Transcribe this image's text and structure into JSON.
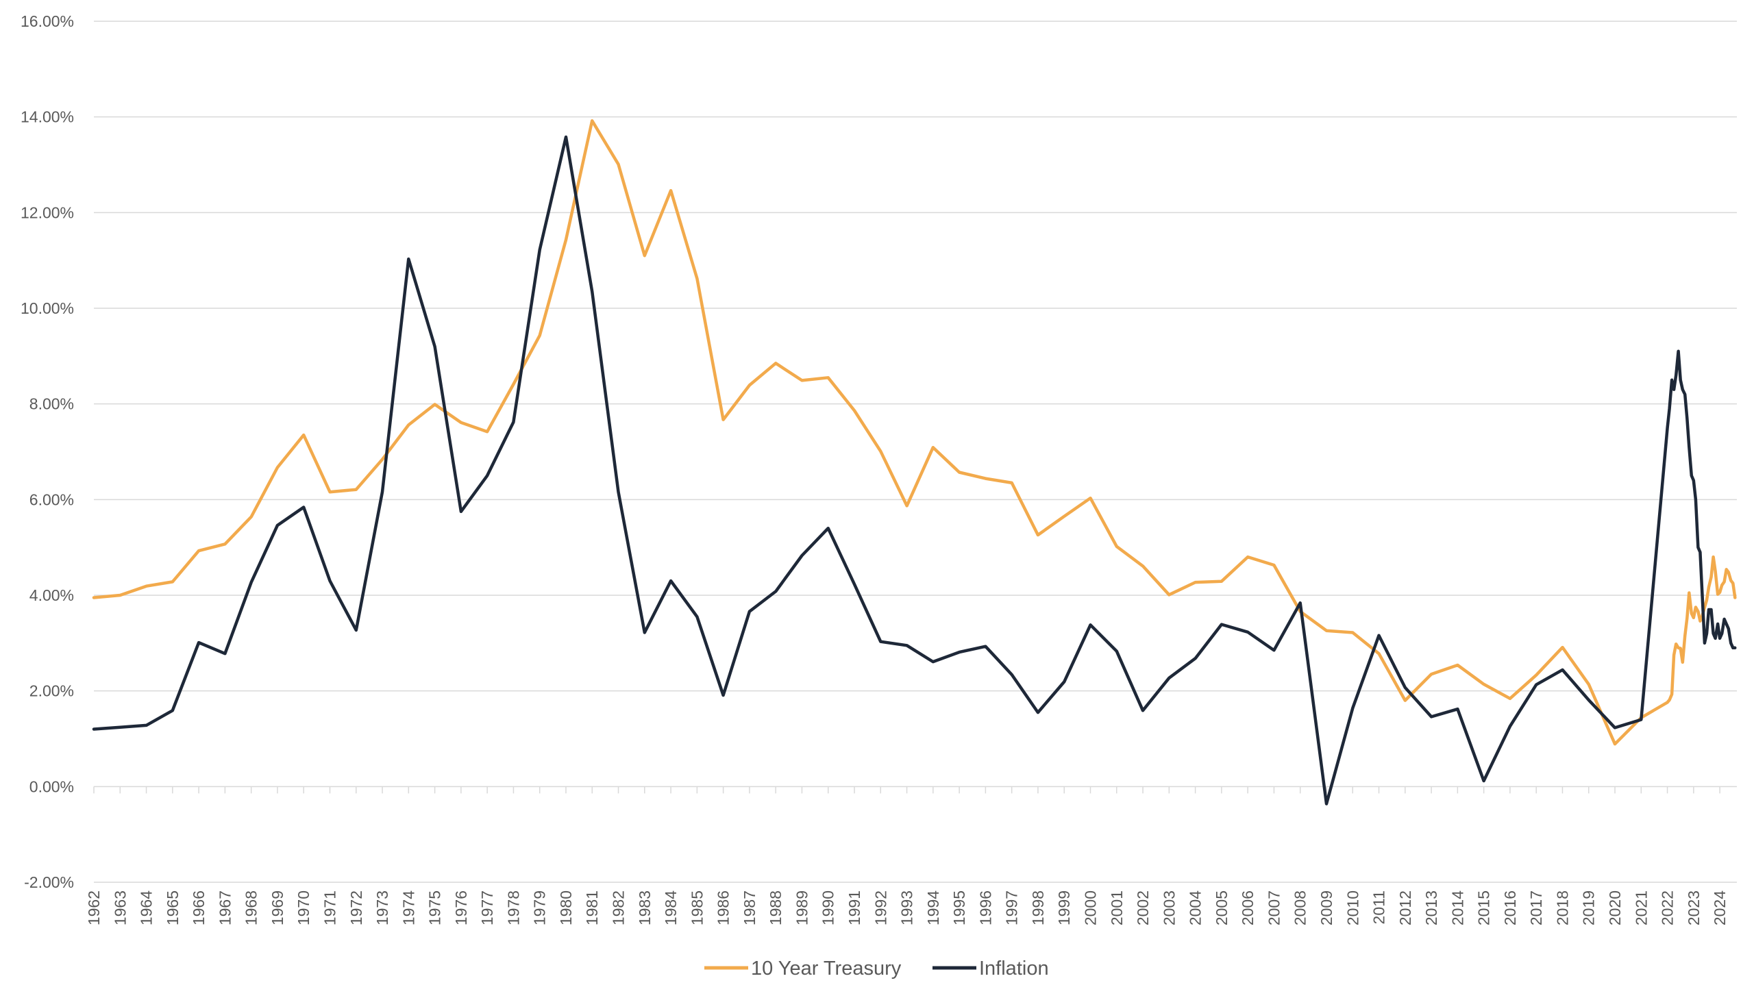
{
  "chart_data": {
    "type": "line",
    "title": "",
    "xlabel": "",
    "ylabel": "",
    "ylim": [
      -2,
      16
    ],
    "y_ticks": [
      "16.00%",
      "14.00%",
      "12.00%",
      "10.00%",
      "8.00%",
      "6.00%",
      "4.00%",
      "2.00%",
      "0.00%",
      "-2.00%"
    ],
    "y_tick_values": [
      16,
      14,
      12,
      10,
      8,
      6,
      4,
      2,
      0,
      -2
    ],
    "x_range": [
      1962,
      2024.65
    ],
    "x_ticks": [
      "1962",
      "1963",
      "1964",
      "1965",
      "1966",
      "1967",
      "1968",
      "1969",
      "1970",
      "1971",
      "1972",
      "1973",
      "1974",
      "1975",
      "1976",
      "1977",
      "1978",
      "1979",
      "1980",
      "1981",
      "1982",
      "1983",
      "1984",
      "1985",
      "1986",
      "1987",
      "1988",
      "1989",
      "1990",
      "1991",
      "1992",
      "1993",
      "1994",
      "1995",
      "1996",
      "1997",
      "1998",
      "1999",
      "2000",
      "2001",
      "2002",
      "2003",
      "2004",
      "2005",
      "2006",
      "2007",
      "2008",
      "2009",
      "2010",
      "2011",
      "2012",
      "2013",
      "2014",
      "2015",
      "2016",
      "2017",
      "2018",
      "2019",
      "2020",
      "2021",
      "2022",
      "2023",
      "2024"
    ],
    "grid": true,
    "legend": "bottom",
    "series": [
      {
        "name": "10 Year Treasury",
        "color": "#F2AA4C",
        "x": [
          1962,
          1963,
          1964,
          1965,
          1966,
          1967,
          1968,
          1969,
          1970,
          1971,
          1972,
          1973,
          1974,
          1975,
          1976,
          1977,
          1978,
          1979,
          1980,
          1981,
          1982,
          1983,
          1984,
          1985,
          1986,
          1987,
          1988,
          1989,
          1990,
          1991,
          1992,
          1993,
          1994,
          1995,
          1996,
          1997,
          1998,
          1999,
          2000,
          2001,
          2002,
          2003,
          2004,
          2005,
          2006,
          2007,
          2008,
          2009,
          2010,
          2011,
          2012,
          2013,
          2014,
          2015,
          2016,
          2017,
          2018,
          2019,
          2020,
          2021,
          2022.0,
          2022.08,
          2022.17,
          2022.25,
          2022.33,
          2022.42,
          2022.5,
          2022.58,
          2022.67,
          2022.75,
          2022.83,
          2022.92,
          2023.0,
          2023.08,
          2023.17,
          2023.25,
          2023.33,
          2023.42,
          2023.5,
          2023.58,
          2023.67,
          2023.75,
          2023.83,
          2023.92,
          2024.0,
          2024.08,
          2024.17,
          2024.25,
          2024.33,
          2024.42,
          2024.5,
          2024.58
        ],
        "y": [
          3.95,
          4.0,
          4.19,
          4.28,
          4.93,
          5.07,
          5.64,
          6.67,
          7.35,
          6.16,
          6.21,
          6.84,
          7.56,
          7.99,
          7.61,
          7.42,
          8.41,
          9.43,
          11.43,
          13.92,
          13.01,
          11.1,
          12.46,
          10.62,
          7.67,
          8.39,
          8.85,
          8.49,
          8.55,
          7.86,
          7.01,
          5.87,
          7.09,
          6.57,
          6.44,
          6.35,
          5.26,
          5.65,
          6.03,
          5.02,
          4.61,
          4.01,
          4.27,
          4.29,
          4.8,
          4.63,
          3.66,
          3.26,
          3.22,
          2.78,
          1.8,
          2.35,
          2.54,
          2.14,
          1.84,
          2.33,
          2.91,
          2.14,
          0.89,
          1.44,
          1.76,
          1.81,
          1.93,
          2.75,
          2.98,
          2.9,
          2.89,
          2.6,
          3.15,
          3.52,
          4.05,
          3.62,
          3.53,
          3.75,
          3.66,
          3.46,
          3.57,
          3.75,
          3.9,
          4.17,
          4.38,
          4.8,
          4.5,
          4.02,
          4.06,
          4.21,
          4.28,
          4.54,
          4.48,
          4.31,
          4.25,
          3.95
        ]
      },
      {
        "name": "Inflation",
        "color": "#1E2838",
        "x": [
          1962,
          1963,
          1964,
          1965,
          1966,
          1967,
          1968,
          1969,
          1970,
          1971,
          1972,
          1973,
          1974,
          1975,
          1976,
          1977,
          1978,
          1979,
          1980,
          1981,
          1982,
          1983,
          1984,
          1985,
          1986,
          1987,
          1988,
          1989,
          1990,
          1991,
          1992,
          1993,
          1994,
          1995,
          1996,
          1997,
          1998,
          1999,
          2000,
          2001,
          2002,
          2003,
          2004,
          2005,
          2006,
          2007,
          2008,
          2009,
          2010,
          2011,
          2012,
          2013,
          2014,
          2015,
          2016,
          2017,
          2018,
          2019,
          2020,
          2021,
          2022.0,
          2022.08,
          2022.17,
          2022.25,
          2022.33,
          2022.42,
          2022.5,
          2022.58,
          2022.67,
          2022.75,
          2022.83,
          2022.92,
          2023.0,
          2023.08,
          2023.17,
          2023.25,
          2023.33,
          2023.42,
          2023.5,
          2023.58,
          2023.67,
          2023.75,
          2023.83,
          2023.92,
          2024.0,
          2024.08,
          2024.17,
          2024.25,
          2024.33,
          2024.42,
          2024.5,
          2024.58
        ],
        "y": [
          1.2,
          1.24,
          1.28,
          1.59,
          3.01,
          2.78,
          4.27,
          5.46,
          5.84,
          4.3,
          3.27,
          6.16,
          11.03,
          9.2,
          5.75,
          6.5,
          7.62,
          11.22,
          13.58,
          10.35,
          6.16,
          3.22,
          4.3,
          3.55,
          1.91,
          3.66,
          4.08,
          4.83,
          5.4,
          4.23,
          3.03,
          2.95,
          2.61,
          2.81,
          2.93,
          2.34,
          1.55,
          2.19,
          3.38,
          2.83,
          1.59,
          2.27,
          2.68,
          3.39,
          3.23,
          2.85,
          3.84,
          -0.36,
          1.64,
          3.16,
          2.07,
          1.46,
          1.62,
          0.12,
          1.26,
          2.13,
          2.44,
          1.81,
          1.23,
          1.4,
          7.5,
          7.9,
          8.5,
          8.3,
          8.6,
          9.1,
          8.5,
          8.3,
          8.2,
          7.7,
          7.1,
          6.5,
          6.4,
          6.0,
          5.0,
          4.9,
          4.0,
          3.0,
          3.2,
          3.7,
          3.7,
          3.2,
          3.1,
          3.4,
          3.1,
          3.2,
          3.5,
          3.4,
          3.3,
          3.0,
          2.9,
          2.9
        ]
      }
    ]
  }
}
